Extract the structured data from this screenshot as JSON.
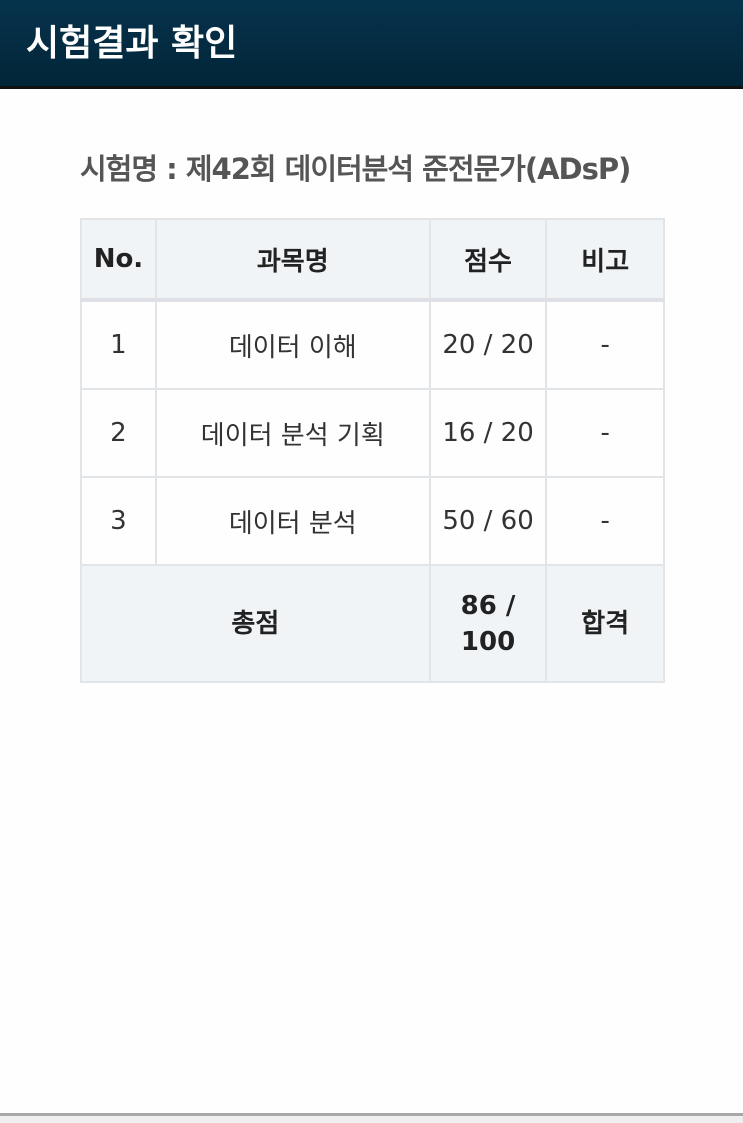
{
  "header": {
    "title": "시험결과 확인"
  },
  "exam": {
    "label": "시험명 : 제42회 데이터분석 준전문가(ADsP)"
  },
  "table": {
    "columns": [
      "No.",
      "과목명",
      "점수",
      "비고"
    ],
    "rows": [
      {
        "no": "1",
        "subject": "데이터 이해",
        "score": "20 / 20",
        "note": "-"
      },
      {
        "no": "2",
        "subject": "데이터 분석 기획",
        "score": "16 / 20",
        "note": "-"
      },
      {
        "no": "3",
        "subject": "데이터 분석",
        "score": "50 / 60",
        "note": "-"
      }
    ],
    "total": {
      "label": "총점",
      "score": "86 / 100",
      "result": "합격"
    }
  }
}
